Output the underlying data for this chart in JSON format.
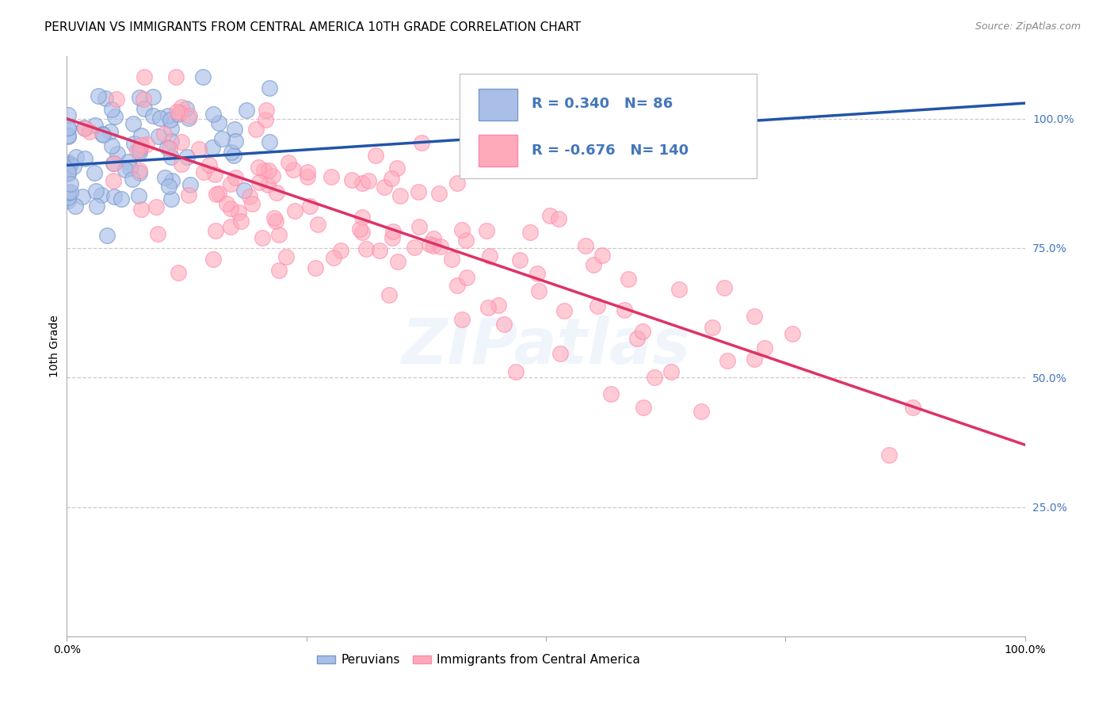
{
  "title": "PERUVIAN VS IMMIGRANTS FROM CENTRAL AMERICA 10TH GRADE CORRELATION CHART",
  "source": "Source: ZipAtlas.com",
  "legend_label1": "Peruvians",
  "legend_label2": "Immigrants from Central America",
  "R1": 0.34,
  "N1": 86,
  "R2": -0.676,
  "N2": 140,
  "color_blue_fill": "#AABFE8",
  "color_blue_edge": "#7799CC",
  "color_pink_fill": "#FFAABB",
  "color_pink_edge": "#FF88AA",
  "color_blue_line": "#2255AA",
  "color_pink_line": "#DD3366",
  "watermark_color": "#AACCEE",
  "title_fontsize": 11,
  "source_fontsize": 9,
  "legend_fontsize": 13,
  "axis_label_fontsize": 10,
  "tick_fontsize": 10,
  "background_color": "#FFFFFF",
  "grid_color": "#CCCCCC",
  "ytick_color": "#4477BB",
  "xlim": [
    0.0,
    1.0
  ],
  "ylim": [
    0.0,
    1.12
  ],
  "ytick_positions": [
    1.0,
    0.75,
    0.5,
    0.25
  ],
  "ytick_labels": [
    "100.0%",
    "75.0%",
    "50.0%",
    "25.0%"
  ],
  "blue_line_x0": 0.0,
  "blue_line_y0": 0.91,
  "blue_line_x1": 1.0,
  "blue_line_y1": 1.03,
  "pink_line_x0": 0.0,
  "pink_line_y0": 1.0,
  "pink_line_x1": 1.0,
  "pink_line_y1": 0.37
}
